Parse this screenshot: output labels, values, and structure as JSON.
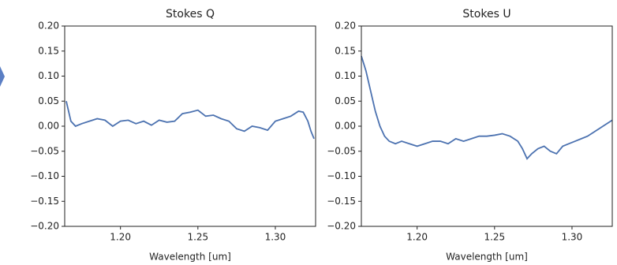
{
  "chart_data": [
    {
      "type": "line",
      "title": "Stokes Q",
      "x_label": "Wavelength [um]",
      "x": [
        1.165,
        1.168,
        1.171,
        1.175,
        1.18,
        1.185,
        1.19,
        1.195,
        1.2,
        1.205,
        1.21,
        1.215,
        1.22,
        1.225,
        1.23,
        1.235,
        1.24,
        1.245,
        1.25,
        1.255,
        1.26,
        1.265,
        1.27,
        1.275,
        1.28,
        1.285,
        1.29,
        1.295,
        1.3,
        1.305,
        1.31,
        1.315,
        1.318,
        1.321,
        1.323,
        1.325
      ],
      "series": [
        {
          "color": "#4c72b0",
          "values": [
            0.05,
            0.01,
            0.0,
            0.005,
            0.01,
            0.015,
            0.012,
            0.0,
            0.01,
            0.012,
            0.005,
            0.01,
            0.002,
            0.012,
            0.008,
            0.01,
            0.025,
            0.028,
            0.032,
            0.02,
            0.022,
            0.015,
            0.01,
            -0.005,
            -0.01,
            0.0,
            -0.003,
            -0.008,
            0.01,
            0.015,
            0.02,
            0.03,
            0.028,
            0.01,
            -0.01,
            -0.025
          ]
        }
      ],
      "xlim": [
        1.164,
        1.326
      ],
      "ylim": [
        -0.2,
        0.2
      ],
      "xticks": [
        {
          "value": 1.2,
          "label": "1.20"
        },
        {
          "value": 1.25,
          "label": "1.25"
        },
        {
          "value": 1.3,
          "label": "1.30"
        }
      ],
      "yticks": [
        {
          "value": 0.2,
          "label": "0.20"
        },
        {
          "value": 0.15,
          "label": "0.15"
        },
        {
          "value": 0.1,
          "label": "0.10"
        },
        {
          "value": 0.05,
          "label": "0.05"
        },
        {
          "value": 0,
          "label": "0.00"
        },
        {
          "value": -0.05,
          "label": "−0.05"
        },
        {
          "value": -0.1,
          "label": "−0.10"
        },
        {
          "value": -0.15,
          "label": "−0.15"
        },
        {
          "value": -0.2,
          "label": "−0.20"
        }
      ]
    },
    {
      "type": "line",
      "title": "Stokes U",
      "x_label": "Wavelength [um]",
      "x": [
        1.164,
        1.167,
        1.17,
        1.173,
        1.176,
        1.179,
        1.182,
        1.186,
        1.19,
        1.195,
        1.2,
        1.205,
        1.21,
        1.215,
        1.22,
        1.225,
        1.23,
        1.235,
        1.24,
        1.245,
        1.25,
        1.255,
        1.26,
        1.265,
        1.268,
        1.271,
        1.274,
        1.278,
        1.282,
        1.286,
        1.29,
        1.294,
        1.298,
        1.302,
        1.306,
        1.31,
        1.315,
        1.32,
        1.326
      ],
      "series": [
        {
          "color": "#4c72b0",
          "values": [
            0.14,
            0.11,
            0.07,
            0.03,
            0.0,
            -0.02,
            -0.03,
            -0.035,
            -0.03,
            -0.035,
            -0.04,
            -0.035,
            -0.03,
            -0.03,
            -0.035,
            -0.025,
            -0.03,
            -0.025,
            -0.02,
            -0.02,
            -0.018,
            -0.015,
            -0.02,
            -0.03,
            -0.045,
            -0.065,
            -0.055,
            -0.045,
            -0.04,
            -0.05,
            -0.055,
            -0.04,
            -0.035,
            -0.03,
            -0.025,
            -0.02,
            -0.01,
            0.0,
            0.012
          ]
        }
      ],
      "xlim": [
        1.164,
        1.326
      ],
      "ylim": [
        -0.2,
        0.2
      ],
      "xticks": [
        {
          "value": 1.2,
          "label": "1.20"
        },
        {
          "value": 1.25,
          "label": "1.25"
        },
        {
          "value": 1.3,
          "label": "1.30"
        }
      ],
      "yticks": [
        {
          "value": 0.2,
          "label": "0.20"
        },
        {
          "value": 0.15,
          "label": "0.15"
        },
        {
          "value": 0.1,
          "label": "0.10"
        },
        {
          "value": 0.05,
          "label": "0.05"
        },
        {
          "value": 0,
          "label": "0.00"
        },
        {
          "value": -0.05,
          "label": "−0.05"
        },
        {
          "value": -0.1,
          "label": "−0.10"
        },
        {
          "value": -0.15,
          "label": "−0.15"
        },
        {
          "value": -0.2,
          "label": "−0.20"
        }
      ]
    }
  ]
}
